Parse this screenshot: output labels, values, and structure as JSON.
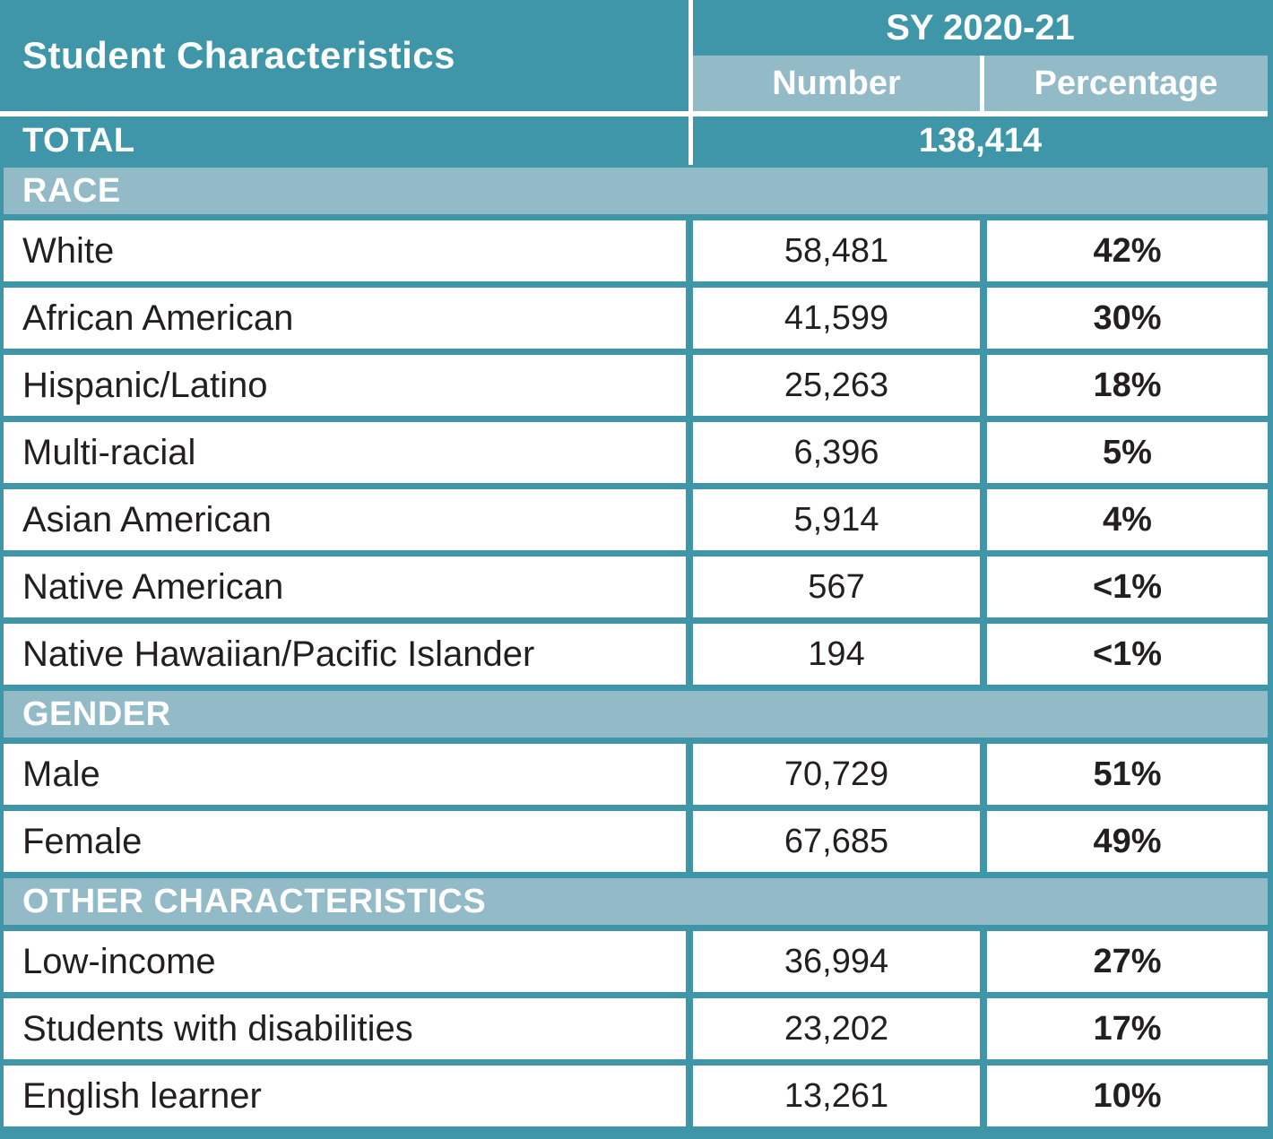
{
  "table": {
    "header": {
      "title": "Student Characteristics",
      "year_group": "SY 2020-21",
      "subcol_number": "Number",
      "subcol_percentage": "Percentage"
    },
    "total": {
      "label": "TOTAL",
      "value": "138,414"
    },
    "sections": [
      {
        "title": "RACE",
        "rows": [
          {
            "label": "White",
            "number": "58,481",
            "percentage": "42%"
          },
          {
            "label": "African American",
            "number": "41,599",
            "percentage": "30%"
          },
          {
            "label": "Hispanic/Latino",
            "number": "25,263",
            "percentage": "18%"
          },
          {
            "label": "Multi-racial",
            "number": "6,396",
            "percentage": "5%"
          },
          {
            "label": "Asian American",
            "number": "5,914",
            "percentage": "4%"
          },
          {
            "label": "Native American",
            "number": "567",
            "percentage": "<1%"
          },
          {
            "label": "Native Hawaiian/Pacific Islander",
            "number": "194",
            "percentage": "<1%"
          }
        ]
      },
      {
        "title": "GENDER",
        "rows": [
          {
            "label": "Male",
            "number": "70,729",
            "percentage": "51%"
          },
          {
            "label": "Female",
            "number": "67,685",
            "percentage": "49%"
          }
        ]
      },
      {
        "title": "OTHER CHARACTERISTICS",
        "rows": [
          {
            "label": "Low-income",
            "number": "36,994",
            "percentage": "27%"
          },
          {
            "label": "Students with disabilities",
            "number": "23,202",
            "percentage": "17%"
          },
          {
            "label": "English learner",
            "number": "13,261",
            "percentage": "10%"
          }
        ]
      }
    ],
    "colors": {
      "teal_dark": "#3E96A8",
      "teal_light_band": "#92BAC7",
      "cell_background": "#FFFFFF",
      "header_text": "#FFFFFF",
      "body_text": "#231F20"
    }
  },
  "chart_data": {
    "type": "table",
    "title": "Student Characteristics",
    "columns": [
      "Student Characteristics",
      "Number (SY 2020-21)",
      "Percentage (SY 2020-21)"
    ],
    "total_students": 138414,
    "sections": [
      {
        "name": "RACE",
        "rows": [
          {
            "category": "White",
            "number": 58481,
            "percentage": "42%"
          },
          {
            "category": "African American",
            "number": 41599,
            "percentage": "30%"
          },
          {
            "category": "Hispanic/Latino",
            "number": 25263,
            "percentage": "18%"
          },
          {
            "category": "Multi-racial",
            "number": 6396,
            "percentage": "5%"
          },
          {
            "category": "Asian American",
            "number": 5914,
            "percentage": "4%"
          },
          {
            "category": "Native American",
            "number": 567,
            "percentage": "<1%"
          },
          {
            "category": "Native Hawaiian/Pacific Islander",
            "number": 194,
            "percentage": "<1%"
          }
        ]
      },
      {
        "name": "GENDER",
        "rows": [
          {
            "category": "Male",
            "number": 70729,
            "percentage": "51%"
          },
          {
            "category": "Female",
            "number": 67685,
            "percentage": "49%"
          }
        ]
      },
      {
        "name": "OTHER CHARACTERISTICS",
        "rows": [
          {
            "category": "Low-income",
            "number": 36994,
            "percentage": "27%"
          },
          {
            "category": "Students with disabilities",
            "number": 23202,
            "percentage": "17%"
          },
          {
            "category": "English learner",
            "number": 13261,
            "percentage": "10%"
          }
        ]
      }
    ]
  }
}
